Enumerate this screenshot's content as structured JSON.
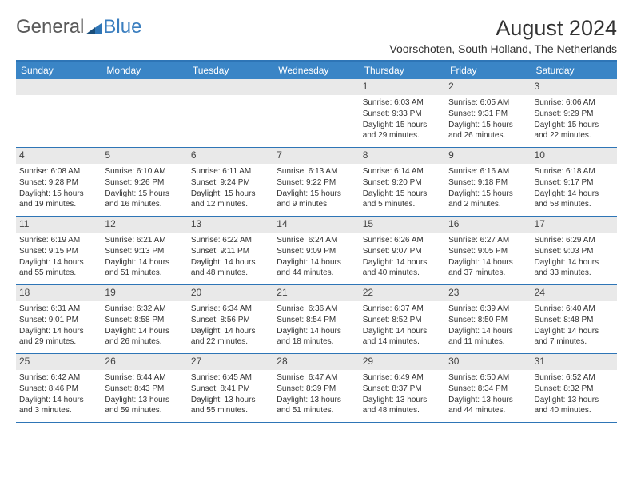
{
  "logo": {
    "part1": "General",
    "part2": "Blue"
  },
  "title": "August 2024",
  "subtitle": "Voorschoten, South Holland, The Netherlands",
  "dayHeaders": [
    "Sunday",
    "Monday",
    "Tuesday",
    "Wednesday",
    "Thursday",
    "Friday",
    "Saturday"
  ],
  "colors": {
    "header_bg": "#3a85c6",
    "header_text": "#ffffff",
    "rule": "#2e75b6",
    "daynum_bg": "#e9e9e9"
  },
  "weeks": [
    [
      {
        "empty": true
      },
      {
        "empty": true
      },
      {
        "empty": true
      },
      {
        "empty": true
      },
      {
        "num": "1",
        "sunrise": "Sunrise: 6:03 AM",
        "sunset": "Sunset: 9:33 PM",
        "daylight": "Daylight: 15 hours and 29 minutes."
      },
      {
        "num": "2",
        "sunrise": "Sunrise: 6:05 AM",
        "sunset": "Sunset: 9:31 PM",
        "daylight": "Daylight: 15 hours and 26 minutes."
      },
      {
        "num": "3",
        "sunrise": "Sunrise: 6:06 AM",
        "sunset": "Sunset: 9:29 PM",
        "daylight": "Daylight: 15 hours and 22 minutes."
      }
    ],
    [
      {
        "num": "4",
        "sunrise": "Sunrise: 6:08 AM",
        "sunset": "Sunset: 9:28 PM",
        "daylight": "Daylight: 15 hours and 19 minutes."
      },
      {
        "num": "5",
        "sunrise": "Sunrise: 6:10 AM",
        "sunset": "Sunset: 9:26 PM",
        "daylight": "Daylight: 15 hours and 16 minutes."
      },
      {
        "num": "6",
        "sunrise": "Sunrise: 6:11 AM",
        "sunset": "Sunset: 9:24 PM",
        "daylight": "Daylight: 15 hours and 12 minutes."
      },
      {
        "num": "7",
        "sunrise": "Sunrise: 6:13 AM",
        "sunset": "Sunset: 9:22 PM",
        "daylight": "Daylight: 15 hours and 9 minutes."
      },
      {
        "num": "8",
        "sunrise": "Sunrise: 6:14 AM",
        "sunset": "Sunset: 9:20 PM",
        "daylight": "Daylight: 15 hours and 5 minutes."
      },
      {
        "num": "9",
        "sunrise": "Sunrise: 6:16 AM",
        "sunset": "Sunset: 9:18 PM",
        "daylight": "Daylight: 15 hours and 2 minutes."
      },
      {
        "num": "10",
        "sunrise": "Sunrise: 6:18 AM",
        "sunset": "Sunset: 9:17 PM",
        "daylight": "Daylight: 14 hours and 58 minutes."
      }
    ],
    [
      {
        "num": "11",
        "sunrise": "Sunrise: 6:19 AM",
        "sunset": "Sunset: 9:15 PM",
        "daylight": "Daylight: 14 hours and 55 minutes."
      },
      {
        "num": "12",
        "sunrise": "Sunrise: 6:21 AM",
        "sunset": "Sunset: 9:13 PM",
        "daylight": "Daylight: 14 hours and 51 minutes."
      },
      {
        "num": "13",
        "sunrise": "Sunrise: 6:22 AM",
        "sunset": "Sunset: 9:11 PM",
        "daylight": "Daylight: 14 hours and 48 minutes."
      },
      {
        "num": "14",
        "sunrise": "Sunrise: 6:24 AM",
        "sunset": "Sunset: 9:09 PM",
        "daylight": "Daylight: 14 hours and 44 minutes."
      },
      {
        "num": "15",
        "sunrise": "Sunrise: 6:26 AM",
        "sunset": "Sunset: 9:07 PM",
        "daylight": "Daylight: 14 hours and 40 minutes."
      },
      {
        "num": "16",
        "sunrise": "Sunrise: 6:27 AM",
        "sunset": "Sunset: 9:05 PM",
        "daylight": "Daylight: 14 hours and 37 minutes."
      },
      {
        "num": "17",
        "sunrise": "Sunrise: 6:29 AM",
        "sunset": "Sunset: 9:03 PM",
        "daylight": "Daylight: 14 hours and 33 minutes."
      }
    ],
    [
      {
        "num": "18",
        "sunrise": "Sunrise: 6:31 AM",
        "sunset": "Sunset: 9:01 PM",
        "daylight": "Daylight: 14 hours and 29 minutes."
      },
      {
        "num": "19",
        "sunrise": "Sunrise: 6:32 AM",
        "sunset": "Sunset: 8:58 PM",
        "daylight": "Daylight: 14 hours and 26 minutes."
      },
      {
        "num": "20",
        "sunrise": "Sunrise: 6:34 AM",
        "sunset": "Sunset: 8:56 PM",
        "daylight": "Daylight: 14 hours and 22 minutes."
      },
      {
        "num": "21",
        "sunrise": "Sunrise: 6:36 AM",
        "sunset": "Sunset: 8:54 PM",
        "daylight": "Daylight: 14 hours and 18 minutes."
      },
      {
        "num": "22",
        "sunrise": "Sunrise: 6:37 AM",
        "sunset": "Sunset: 8:52 PM",
        "daylight": "Daylight: 14 hours and 14 minutes."
      },
      {
        "num": "23",
        "sunrise": "Sunrise: 6:39 AM",
        "sunset": "Sunset: 8:50 PM",
        "daylight": "Daylight: 14 hours and 11 minutes."
      },
      {
        "num": "24",
        "sunrise": "Sunrise: 6:40 AM",
        "sunset": "Sunset: 8:48 PM",
        "daylight": "Daylight: 14 hours and 7 minutes."
      }
    ],
    [
      {
        "num": "25",
        "sunrise": "Sunrise: 6:42 AM",
        "sunset": "Sunset: 8:46 PM",
        "daylight": "Daylight: 14 hours and 3 minutes."
      },
      {
        "num": "26",
        "sunrise": "Sunrise: 6:44 AM",
        "sunset": "Sunset: 8:43 PM",
        "daylight": "Daylight: 13 hours and 59 minutes."
      },
      {
        "num": "27",
        "sunrise": "Sunrise: 6:45 AM",
        "sunset": "Sunset: 8:41 PM",
        "daylight": "Daylight: 13 hours and 55 minutes."
      },
      {
        "num": "28",
        "sunrise": "Sunrise: 6:47 AM",
        "sunset": "Sunset: 8:39 PM",
        "daylight": "Daylight: 13 hours and 51 minutes."
      },
      {
        "num": "29",
        "sunrise": "Sunrise: 6:49 AM",
        "sunset": "Sunset: 8:37 PM",
        "daylight": "Daylight: 13 hours and 48 minutes."
      },
      {
        "num": "30",
        "sunrise": "Sunrise: 6:50 AM",
        "sunset": "Sunset: 8:34 PM",
        "daylight": "Daylight: 13 hours and 44 minutes."
      },
      {
        "num": "31",
        "sunrise": "Sunrise: 6:52 AM",
        "sunset": "Sunset: 8:32 PM",
        "daylight": "Daylight: 13 hours and 40 minutes."
      }
    ]
  ]
}
